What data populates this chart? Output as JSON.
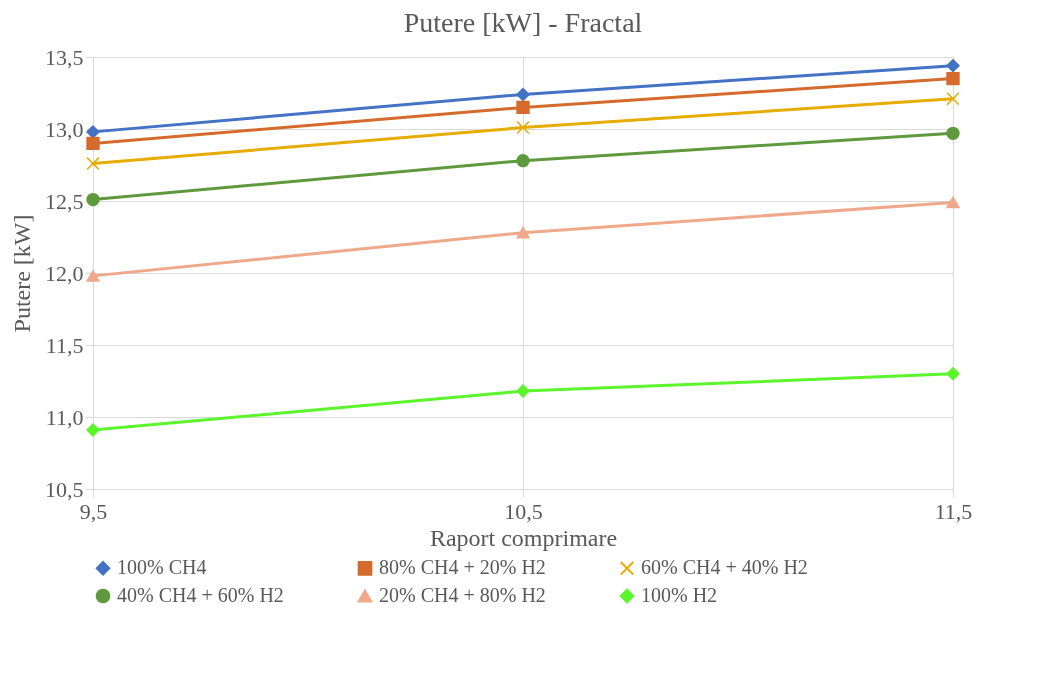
{
  "chart_data": {
    "type": "line",
    "title": "Putere [kW] - Fractal",
    "xlabel": "Raport comprimare",
    "ylabel": "Putere [kW]",
    "x": [
      9.5,
      10.5,
      11.5
    ],
    "xlim": [
      9.5,
      11.5
    ],
    "xticks": [
      {
        "value": 9.5,
        "label": "9,5"
      },
      {
        "value": 10.5,
        "label": "10,5"
      },
      {
        "value": 11.5,
        "label": "11,5"
      }
    ],
    "ylim": [
      10.5,
      13.5
    ],
    "yticks": [
      {
        "value": 10.5,
        "label": "10,5"
      },
      {
        "value": 11,
        "label": "11,0"
      },
      {
        "value": 11.5,
        "label": "11,5"
      },
      {
        "value": 12,
        "label": "12,0"
      },
      {
        "value": 12.5,
        "label": "12,5"
      },
      {
        "value": 13,
        "label": "13,0"
      },
      {
        "value": 13.5,
        "label": "13,5"
      }
    ],
    "grid": true,
    "legend": "bottom",
    "series": [
      {
        "name": "100% CH4",
        "color": "#4472c4",
        "marker": "diamond",
        "values": [
          12.98,
          13.24,
          13.44
        ]
      },
      {
        "name": "80% CH4 + 20% H2",
        "color": "#d46b2c",
        "marker": "square",
        "values": [
          12.9,
          13.15,
          13.35
        ]
      },
      {
        "name": "60% CH4 + 40% H2",
        "color": "#e6ac00",
        "marker": "cross",
        "values": [
          12.76,
          13.01,
          13.21
        ]
      },
      {
        "name": "40% CH4 + 60% H2",
        "color": "#5e9a3d",
        "marker": "circle",
        "values": [
          12.51,
          12.78,
          12.97
        ]
      },
      {
        "name": "20% CH4 + 80% H2",
        "color": "#f0a88a",
        "marker": "triangle",
        "values": [
          11.98,
          12.28,
          12.49
        ]
      },
      {
        "name": "100% H2",
        "color": "#5cf52c",
        "marker": "diamond",
        "values": [
          10.91,
          11.18,
          11.3
        ]
      }
    ]
  }
}
